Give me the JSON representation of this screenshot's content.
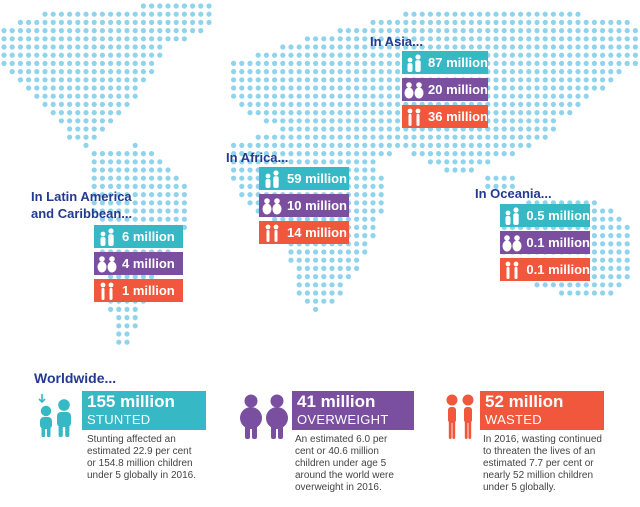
{
  "regions": {
    "asia": {
      "title": "In Asia...",
      "stunted": "87 million",
      "overweight": "20 million",
      "wasted": "36 million"
    },
    "africa": {
      "title": "In Africa...",
      "stunted": "59 million",
      "overweight": "10 million",
      "wasted": "14 million"
    },
    "oceania": {
      "title": "In Oceania...",
      "stunted": "0.5 million",
      "overweight": "0.1 million",
      "wasted": "0.1 million"
    },
    "latam": {
      "title_line1": "In Latin America",
      "title_line2": "and Caribbean...",
      "stunted": "6 million",
      "overweight": "4 million",
      "wasted": "1 million"
    }
  },
  "worldwide": {
    "title": "Worldwide...",
    "stunted": {
      "value": "155 million",
      "label": "STUNTED",
      "text": "Stunting affected an estimated 22.9 per cent or 154.8 million children under 5 globally in 2016."
    },
    "overweight": {
      "value": "41 million",
      "label": "OVERWEIGHT",
      "text": "An estimated 6.0 per cent or 40.6 million children under age 5 around the world were overweight in 2016."
    },
    "wasted": {
      "value": "52 million",
      "label": "WASTED",
      "text": "In 2016, wasting continued to threaten the lives of an estimated 7.7 per cent or nearly 52 million children under 5 globally."
    }
  },
  "colors": {
    "title": "#233a8e",
    "stunted": "#36b8c5",
    "overweight": "#7b4fa0",
    "wasted": "#f0573c",
    "map_dots": "#8fd4ec"
  },
  "icons": {
    "stunted": "stunted-children-icon",
    "overweight": "overweight-children-icon",
    "wasted": "wasted-children-icon"
  }
}
